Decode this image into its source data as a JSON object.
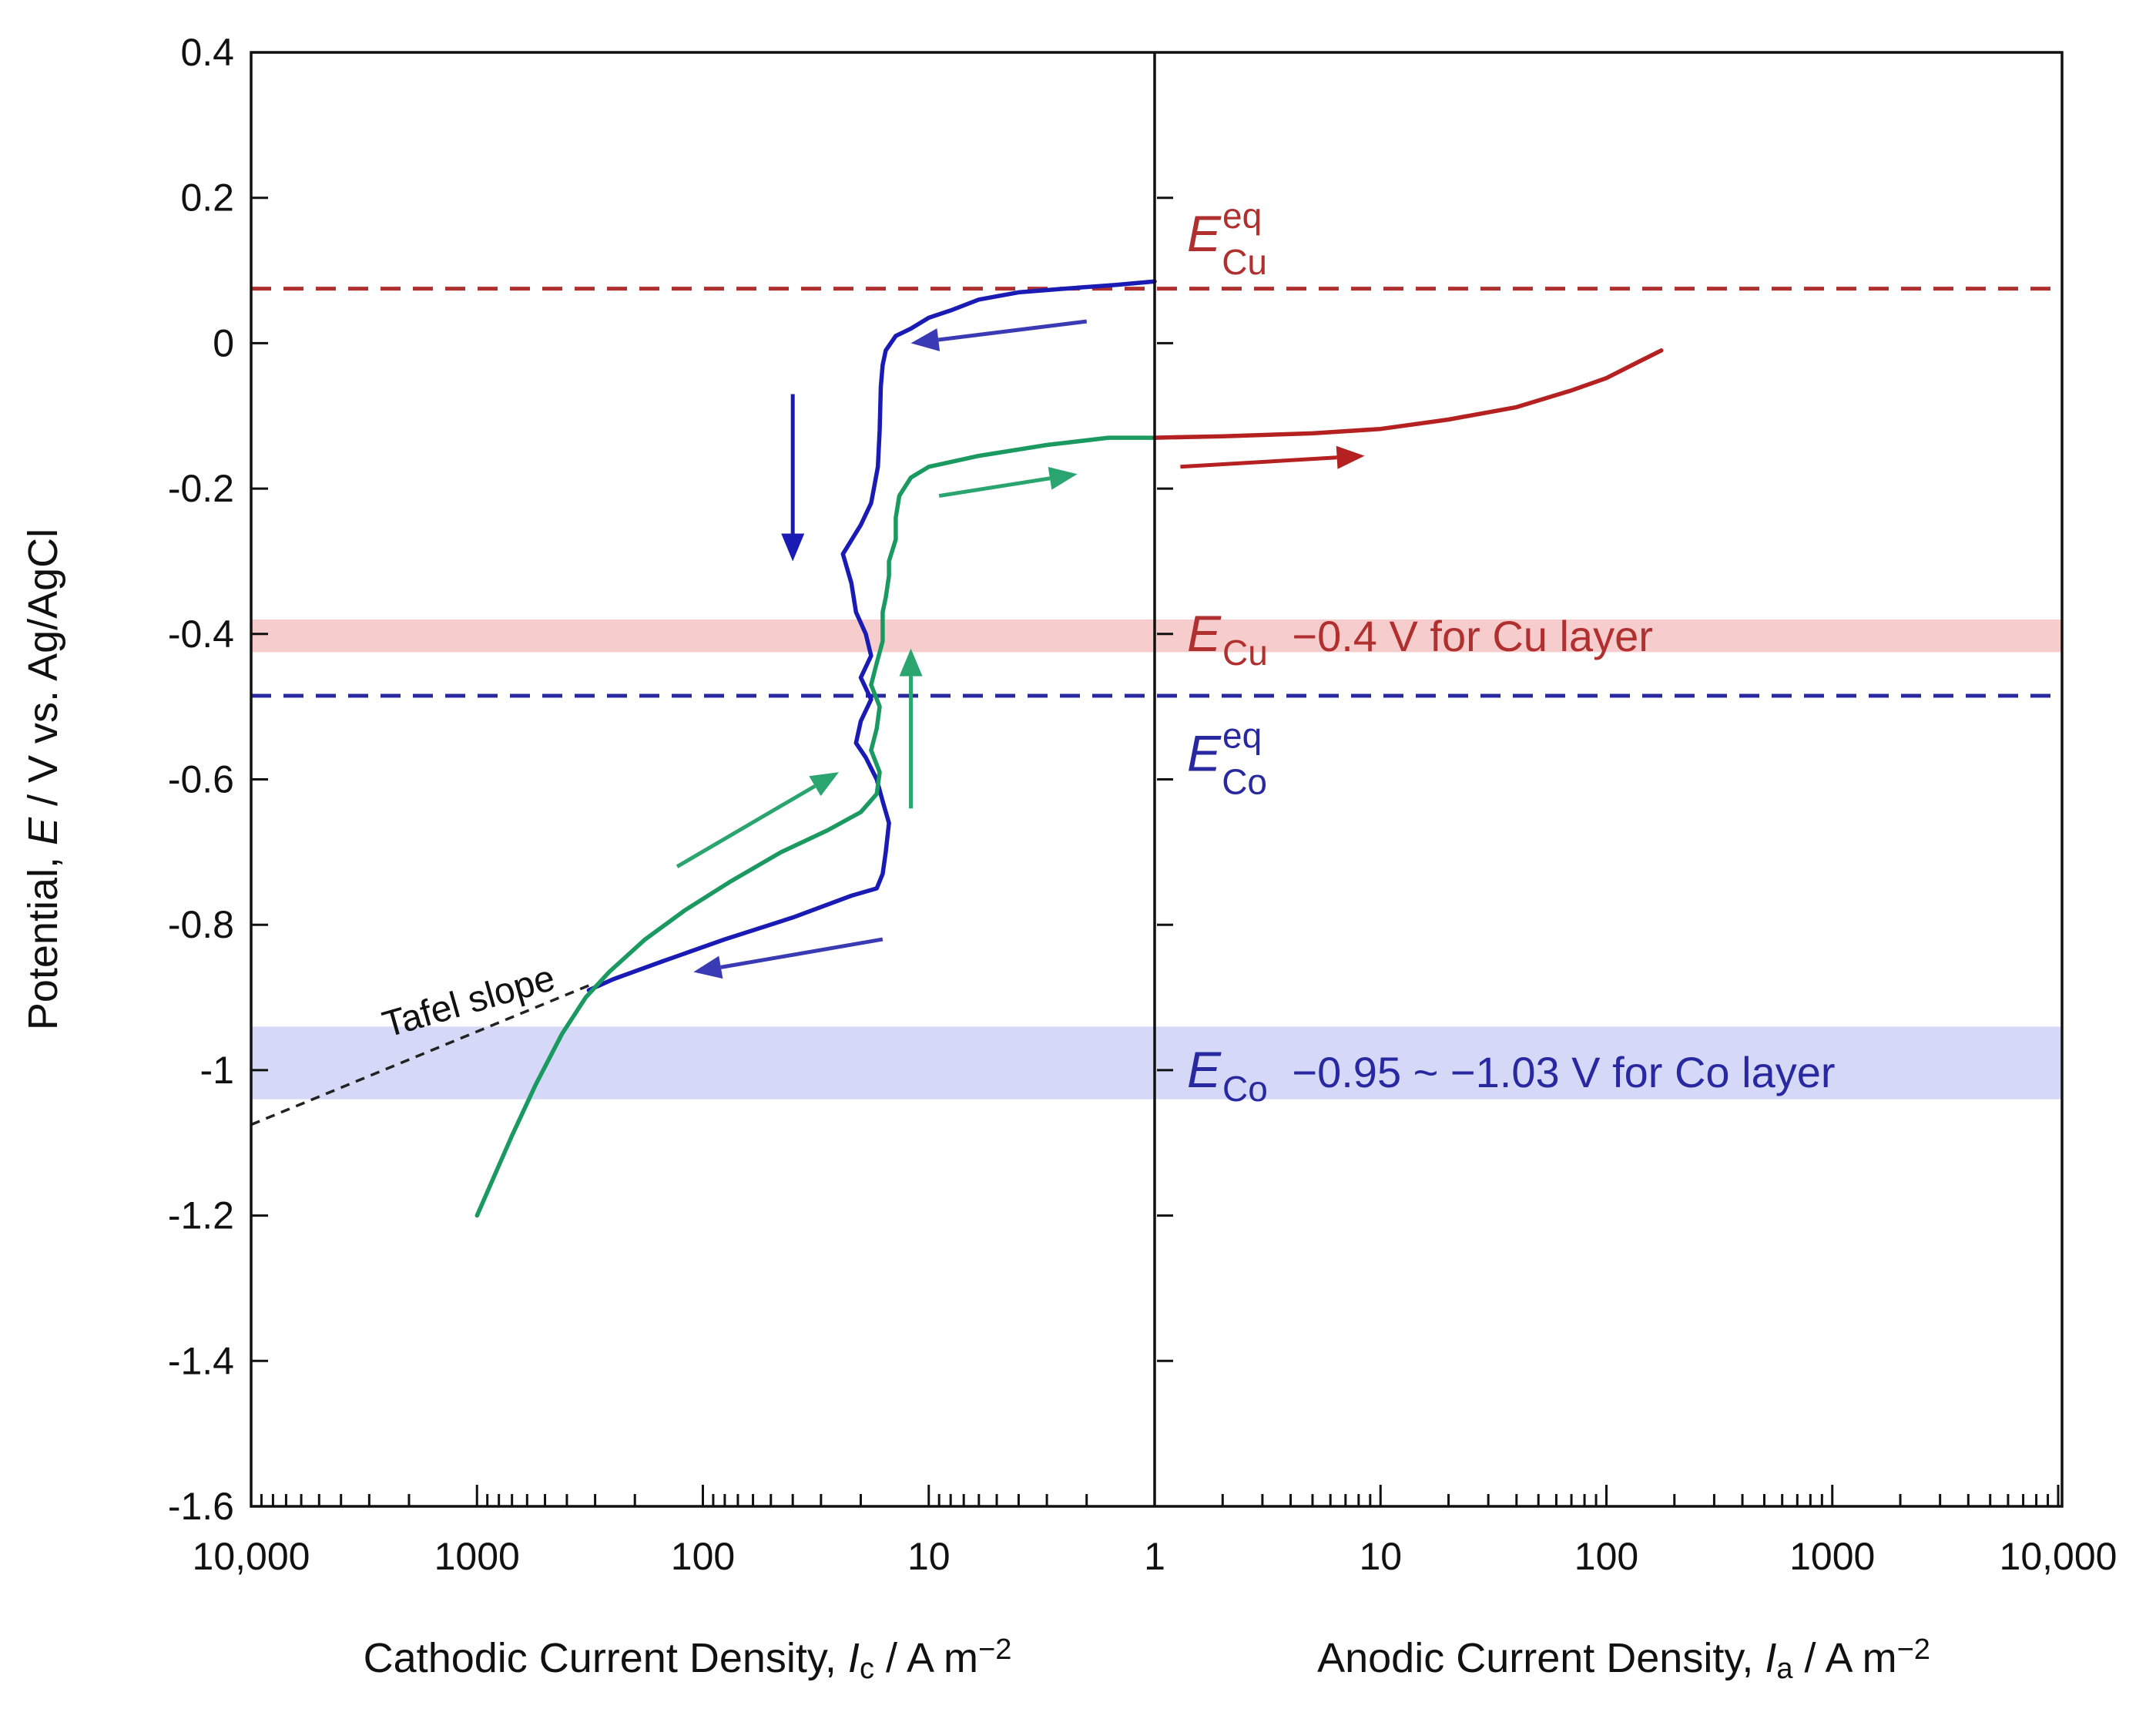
{
  "chart_data": {
    "type": "line",
    "title": "",
    "ylabel": {
      "pre": "Potential, ",
      "sym": "E",
      "post": " / V vs. Ag/AgCl"
    },
    "ylim": [
      -1.6,
      0.4
    ],
    "yticks": [
      0.4,
      0.2,
      0,
      -0.2,
      -0.4,
      -0.6,
      -0.8,
      -1,
      -1.2,
      -1.4,
      -1.6
    ],
    "ytick_labels": [
      "0.4",
      "0.2",
      "0",
      "-0.2",
      "-0.4",
      "-0.6",
      "-0.8",
      "-1",
      "-1.2",
      "-1.4",
      "-1.6"
    ],
    "x_cathodic": {
      "scale": "log",
      "direction": "reversed",
      "range": [
        10000,
        1
      ],
      "ticks": [
        10000,
        1000,
        100,
        10,
        1
      ],
      "tick_labels": [
        "10,000",
        "1000",
        "100",
        "10",
        "1"
      ],
      "label": {
        "pre": "Cathodic Current Density, ",
        "sym": "I",
        "sub": "c",
        "post": " / A m",
        "sup": "−2"
      }
    },
    "x_anodic": {
      "scale": "log",
      "range": [
        1,
        10000
      ],
      "ticks": [
        10,
        100,
        1000,
        10000
      ],
      "tick_labels": [
        "10",
        "100",
        "1000",
        "10,000"
      ],
      "label": {
        "pre": "Anodic Current Density, ",
        "sym": "I",
        "sub": "a",
        "post": " / A m",
        "sup": "−2"
      }
    },
    "series": [
      {
        "name": "Cathodic scan (blue)",
        "side": "cathodic",
        "color": "#1a1ab4",
        "points": [
          [
            1.0,
            0.085
          ],
          [
            1.5,
            0.08
          ],
          [
            2.5,
            0.075
          ],
          [
            4,
            0.07
          ],
          [
            6,
            0.06
          ],
          [
            8,
            0.045
          ],
          [
            10,
            0.035
          ],
          [
            12,
            0.02
          ],
          [
            14,
            0.01
          ],
          [
            15.5,
            -0.01
          ],
          [
            16,
            -0.03
          ],
          [
            16.3,
            -0.06
          ],
          [
            16.5,
            -0.12
          ],
          [
            16.8,
            -0.17
          ],
          [
            17.5,
            -0.2
          ],
          [
            18,
            -0.22
          ],
          [
            20,
            -0.25
          ],
          [
            24,
            -0.29
          ],
          [
            22,
            -0.33
          ],
          [
            21,
            -0.37
          ],
          [
            19,
            -0.4
          ],
          [
            18,
            -0.43
          ],
          [
            20,
            -0.46
          ],
          [
            18,
            -0.49
          ],
          [
            20,
            -0.52
          ],
          [
            21,
            -0.55
          ],
          [
            19,
            -0.57
          ],
          [
            17,
            -0.6
          ],
          [
            16,
            -0.63
          ],
          [
            15,
            -0.66
          ],
          [
            15.5,
            -0.7
          ],
          [
            16,
            -0.73
          ],
          [
            17,
            -0.75
          ],
          [
            22,
            -0.76
          ],
          [
            40,
            -0.79
          ],
          [
            80,
            -0.82
          ],
          [
            150,
            -0.85
          ],
          [
            250,
            -0.875
          ],
          [
            320,
            -0.89
          ]
        ]
      },
      {
        "name": "Reverse scan (green)",
        "side": "cathodic",
        "color": "#1a9a60",
        "points": [
          [
            1000,
            -1.2
          ],
          [
            850,
            -1.15
          ],
          [
            700,
            -1.09
          ],
          [
            550,
            -1.02
          ],
          [
            420,
            -0.95
          ],
          [
            330,
            -0.9
          ],
          [
            260,
            -0.865
          ],
          [
            180,
            -0.82
          ],
          [
            120,
            -0.78
          ],
          [
            75,
            -0.74
          ],
          [
            45,
            -0.7
          ],
          [
            28,
            -0.67
          ],
          [
            20,
            -0.645
          ],
          [
            17,
            -0.62
          ],
          [
            16.5,
            -0.59
          ],
          [
            18,
            -0.56
          ],
          [
            17,
            -0.53
          ],
          [
            16.5,
            -0.5
          ],
          [
            18,
            -0.47
          ],
          [
            17,
            -0.44
          ],
          [
            16,
            -0.41
          ],
          [
            16,
            -0.37
          ],
          [
            15.5,
            -0.35
          ],
          [
            15,
            -0.32
          ],
          [
            15,
            -0.3
          ],
          [
            14,
            -0.27
          ],
          [
            14,
            -0.24
          ],
          [
            13.5,
            -0.21
          ],
          [
            12,
            -0.185
          ],
          [
            10,
            -0.17
          ],
          [
            6,
            -0.155
          ],
          [
            3,
            -0.14
          ],
          [
            1.6,
            -0.13
          ],
          [
            1.0,
            -0.13
          ]
        ]
      },
      {
        "name": "Anodic scan (red)",
        "side": "anodic",
        "color": "#b52020",
        "points": [
          [
            1,
            -0.13
          ],
          [
            2,
            -0.128
          ],
          [
            5,
            -0.124
          ],
          [
            10,
            -0.118
          ],
          [
            20,
            -0.105
          ],
          [
            40,
            -0.088
          ],
          [
            70,
            -0.065
          ],
          [
            100,
            -0.048
          ],
          [
            140,
            -0.025
          ],
          [
            175,
            -0.01
          ]
        ]
      }
    ],
    "reference_lines": [
      {
        "name": "E_Cu_eq",
        "y": 0.075,
        "color": "#b03030",
        "style": "dashed"
      },
      {
        "name": "E_Co_eq",
        "y": -0.485,
        "color": "#2828a0",
        "style": "dashed"
      }
    ],
    "bands": [
      {
        "name": "E_Cu band",
        "y": [
          -0.38,
          -0.425
        ],
        "color": "#f7cccc"
      },
      {
        "name": "E_Co band",
        "y": [
          -0.94,
          -1.04
        ],
        "color": "#d6d8f8"
      }
    ],
    "tafel_line": {
      "points": [
        [
          10000,
          -1.075
        ],
        [
          300,
          -0.88
        ]
      ],
      "color": "#222222",
      "label": "Tafel slope"
    },
    "arrows": [
      {
        "color": "#3a3ab4",
        "from": [
          2,
          0.03
        ],
        "to": [
          12,
          0.0
        ]
      },
      {
        "color": "#1a1ab4",
        "from": [
          40,
          -0.07
        ],
        "to": [
          40,
          -0.3
        ]
      },
      {
        "color": "#3a3ab4",
        "from": [
          16,
          -0.82
        ],
        "to": [
          110,
          -0.865
        ]
      },
      {
        "color": "#2aa570",
        "from": [
          130,
          -0.72
        ],
        "to": [
          25,
          -0.59
        ]
      },
      {
        "color": "#2aa570",
        "from": [
          12,
          -0.64
        ],
        "to": [
          12,
          -0.42
        ]
      },
      {
        "color": "#2aa570",
        "from": [
          9,
          -0.21
        ],
        "to": [
          2.2,
          -0.18
        ]
      },
      {
        "color": "#b52020",
        "from": [
          1.3,
          -0.17
        ],
        "to": [
          8.5,
          -0.155
        ],
        "side": "anodic"
      }
    ],
    "annotations": [
      {
        "id": "cu_eq",
        "color": "#b03030",
        "sym": "E",
        "sub": "Cu",
        "sup": "eq",
        "text": "",
        "y": 0.15
      },
      {
        "id": "cu_band",
        "color": "#b03030",
        "sym": "E",
        "sub": "Cu",
        "sup": "",
        "text": "−0.4 V for Cu layer",
        "y": -0.4
      },
      {
        "id": "co_eq",
        "color": "#2828a0",
        "sym": "E",
        "sub": "Co",
        "sup": "eq",
        "text": "",
        "y": -0.565
      },
      {
        "id": "co_band",
        "color": "#2828a0",
        "sym": "E",
        "sub": "Co",
        "sup": "",
        "text": "−0.95 ~ −1.03 V for Co layer",
        "y": -1.0
      }
    ]
  }
}
